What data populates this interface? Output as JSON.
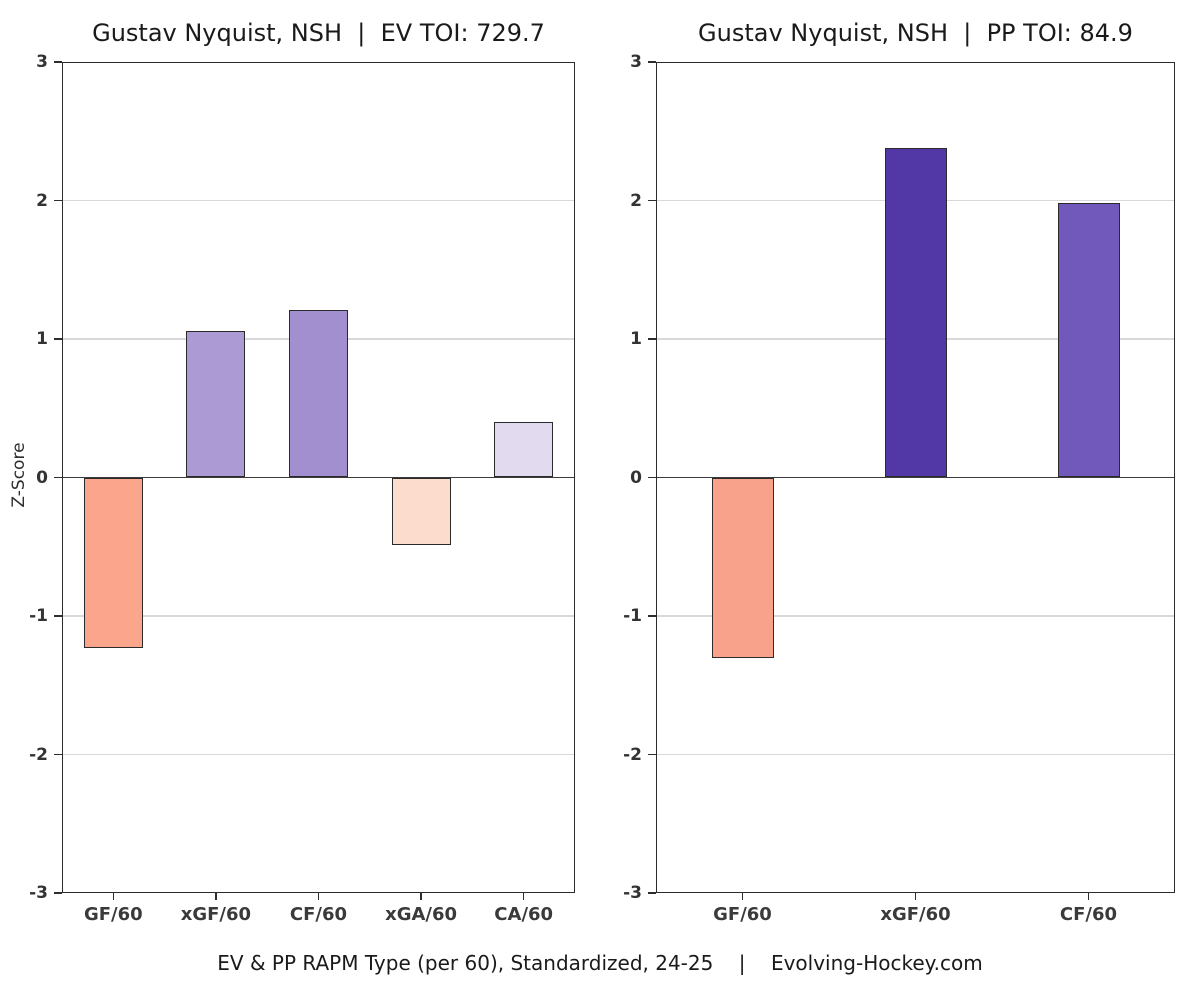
{
  "figure": {
    "background": "#ffffff",
    "caption": "EV & PP RAPM Type (per 60), Standardized, 24-25    |    Evolving-Hockey.com"
  },
  "chart_data": [
    {
      "type": "bar",
      "title": "Gustav Nyquist, NSH  |  EV TOI: 729.7",
      "toi_label": "EV TOI: 729.7",
      "categories": [
        "GF/60",
        "xGF/60",
        "CF/60",
        "xGA/60",
        "CA/60"
      ],
      "values": [
        -1.23,
        1.06,
        1.21,
        -0.49,
        0.4
      ],
      "bar_colors": [
        "#fba58c",
        "#ab9ad4",
        "#a18fd0",
        "#fbdccd",
        "#e2dbef"
      ],
      "ylabel": "Z-Score",
      "ylim": [
        -3,
        3
      ],
      "yticks": [
        -3,
        -2,
        -1,
        0,
        1,
        2,
        3
      ],
      "grid": "horizontal-major",
      "legend": "none"
    },
    {
      "type": "bar",
      "title": "Gustav Nyquist, NSH  |  PP TOI: 84.9",
      "toi_label": "PP TOI: 84.9",
      "categories": [
        "GF/60",
        "xGF/60",
        "CF/60"
      ],
      "values": [
        -1.3,
        2.38,
        1.98
      ],
      "bar_colors": [
        "#f9a28b",
        "#5238a6",
        "#7159bc"
      ],
      "ylabel": "Z-Score",
      "ylim": [
        -3,
        3
      ],
      "yticks": [
        -3,
        -2,
        -1,
        0,
        1,
        2,
        3
      ],
      "grid": "horizontal-major",
      "legend": "none"
    }
  ],
  "colors": {
    "grid": "#d9d9d9",
    "zero_line": "#3c3c3c",
    "plot_border": "#2b2b2b",
    "bar_border": "#2b2b2b",
    "tick_label": "#333333",
    "title": "#1a1a1a"
  }
}
